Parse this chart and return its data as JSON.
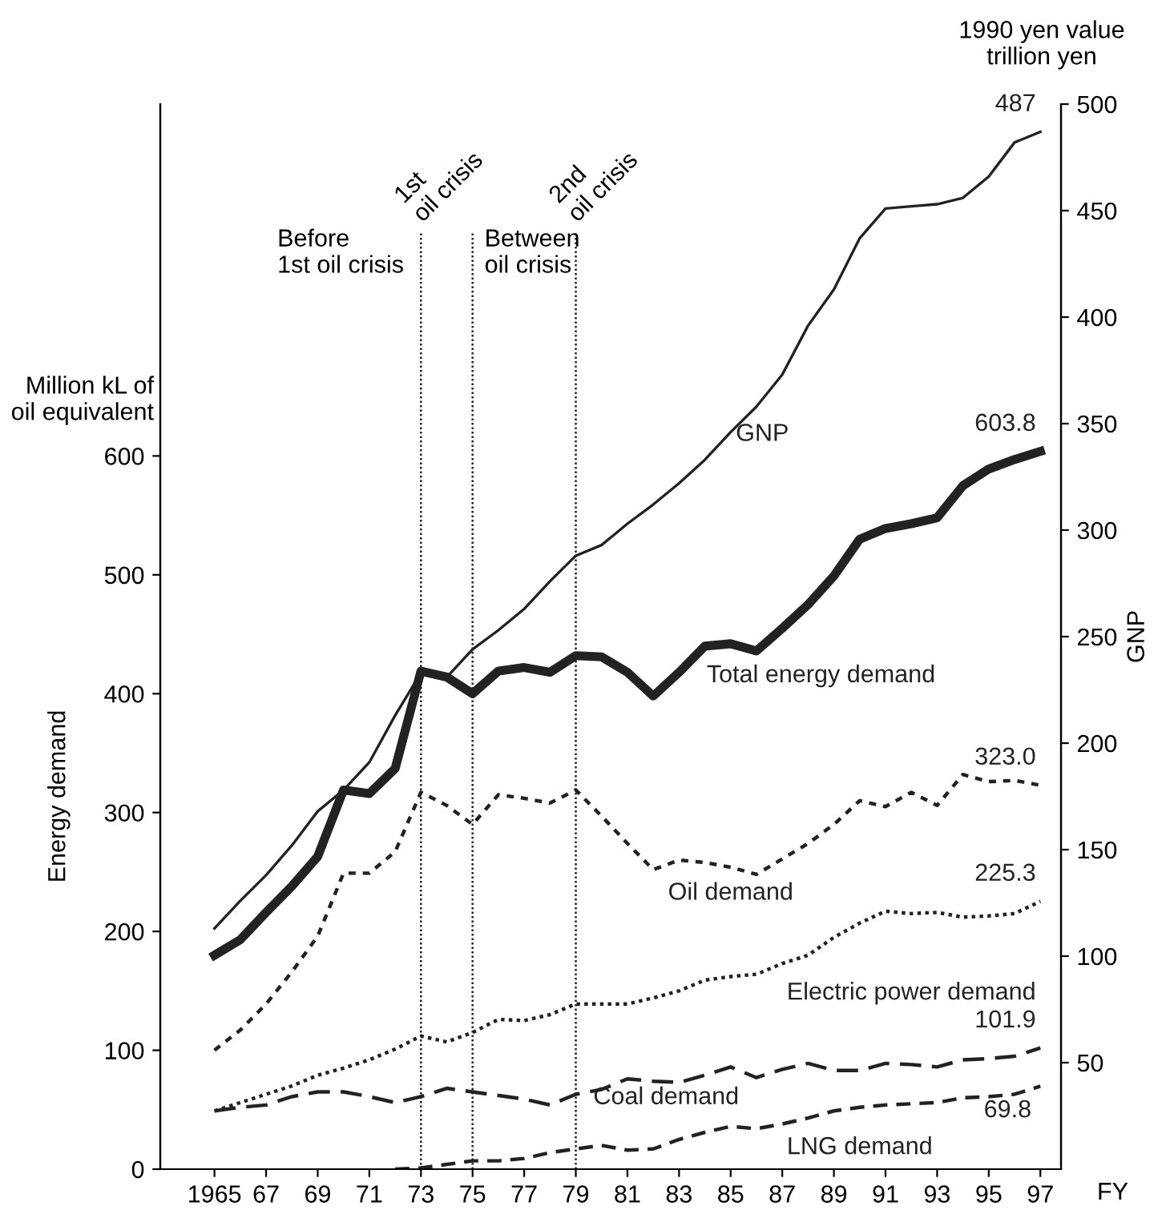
{
  "chart_data": {
    "type": "line",
    "xlabel": "FY",
    "ylabel": "Energy demand",
    "y2label": "GNP",
    "x": [
      1965,
      1966,
      1967,
      1968,
      1969,
      1970,
      1971,
      1972,
      1973,
      1974,
      1975,
      1976,
      1977,
      1978,
      1979,
      1980,
      1981,
      1982,
      1983,
      1984,
      1985,
      1986,
      1987,
      1988,
      1989,
      1990,
      1991,
      1992,
      1993,
      1994,
      1995,
      1996,
      1997
    ],
    "xlim": [
      1962.9,
      1997.8
    ],
    "xticks": [
      {
        "value": 1965,
        "label": "1965"
      },
      {
        "value": 1967,
        "label": "67"
      },
      {
        "value": 1969,
        "label": "69"
      },
      {
        "value": 1971,
        "label": "71"
      },
      {
        "value": 1973,
        "label": "73"
      },
      {
        "value": 1975,
        "label": "75"
      },
      {
        "value": 1977,
        "label": "77"
      },
      {
        "value": 1979,
        "label": "79"
      },
      {
        "value": 1981,
        "label": "81"
      },
      {
        "value": 1983,
        "label": "83"
      },
      {
        "value": 1985,
        "label": "85"
      },
      {
        "value": 1987,
        "label": "87"
      },
      {
        "value": 1989,
        "label": "89"
      },
      {
        "value": 1991,
        "label": "91"
      },
      {
        "value": 1993,
        "label": "93"
      },
      {
        "value": 1995,
        "label": "95"
      },
      {
        "value": 1997,
        "label": "97"
      }
    ],
    "ylim": [
      0,
      896
    ],
    "yticks": [
      0,
      100,
      200,
      300,
      400,
      500,
      600
    ],
    "y2lim": [
      0,
      500
    ],
    "y2ticks": [
      50,
      100,
      150,
      200,
      250,
      300,
      350,
      400,
      450,
      500
    ],
    "grid": false,
    "legend": false,
    "marker": "none",
    "series": [
      {
        "name": "GNP",
        "color": "#222222",
        "axis": "y2",
        "line_style": "solid",
        "values": [
          113,
          126,
          138,
          152,
          168,
          178,
          191,
          213,
          233,
          231,
          244,
          253,
          263,
          276,
          288,
          293,
          303,
          312,
          322,
          333,
          346,
          358,
          373,
          396,
          413,
          437,
          451,
          452,
          453,
          456,
          466,
          482,
          487
        ],
        "value_labels": [
          null,
          null,
          null,
          null,
          null,
          null,
          null,
          null,
          null,
          null,
          null,
          null,
          null,
          null,
          null,
          null,
          null,
          null,
          null,
          null,
          null,
          null,
          null,
          null,
          null,
          null,
          null,
          null,
          null,
          null,
          null,
          null,
          "487"
        ]
      },
      {
        "name": "Total energy demand",
        "color": "#222222",
        "line_style": "solid",
        "values": [
          180,
          193,
          216,
          238,
          263,
          319,
          316,
          337,
          419,
          414,
          400,
          419,
          422,
          418,
          432,
          431,
          418,
          398,
          418,
          440,
          442,
          436,
          455,
          475,
          499,
          530,
          539,
          543,
          548,
          575,
          589,
          597,
          603.8
        ],
        "value_labels": [
          null,
          null,
          null,
          null,
          null,
          null,
          null,
          null,
          null,
          null,
          null,
          null,
          null,
          null,
          null,
          null,
          null,
          null,
          null,
          null,
          null,
          null,
          null,
          null,
          null,
          null,
          null,
          null,
          null,
          null,
          null,
          null,
          "603.8"
        ]
      },
      {
        "name": "Oil demand",
        "color": "#222222",
        "line_style": "dashed",
        "values": [
          100,
          117,
          139,
          166,
          196,
          249,
          249,
          267,
          317,
          306,
          290,
          315,
          312,
          308,
          319,
          297,
          274,
          252,
          260,
          258,
          254,
          248,
          261,
          274,
          290,
          310,
          305,
          317,
          306,
          332,
          326,
          327,
          323.0
        ],
        "value_labels": [
          null,
          null,
          null,
          null,
          null,
          null,
          null,
          null,
          null,
          null,
          null,
          null,
          null,
          null,
          null,
          null,
          null,
          null,
          null,
          null,
          null,
          null,
          null,
          null,
          null,
          null,
          null,
          null,
          null,
          null,
          null,
          null,
          "323.0"
        ]
      },
      {
        "name": "Electric power demand",
        "color": "#222222",
        "line_style": "dotted",
        "values": [
          49,
          56,
          63,
          70,
          79,
          85,
          92,
          101,
          112,
          107,
          115,
          126,
          125,
          130,
          139,
          139,
          139,
          144,
          150,
          159,
          162,
          164,
          173,
          180,
          195,
          207,
          217,
          215,
          216,
          212,
          213,
          215,
          225.3
        ],
        "value_labels": [
          null,
          null,
          null,
          null,
          null,
          null,
          null,
          null,
          null,
          null,
          null,
          null,
          null,
          null,
          null,
          null,
          null,
          null,
          null,
          null,
          null,
          null,
          null,
          null,
          null,
          null,
          null,
          null,
          null,
          null,
          null,
          null,
          "225.3"
        ]
      },
      {
        "name": "Coal demand",
        "color": "#222222",
        "line_style": "dashed",
        "values": [
          49,
          52,
          54,
          61,
          65,
          65,
          61,
          56,
          61,
          68,
          65,
          62,
          59,
          54,
          63,
          67,
          76,
          74,
          73,
          79,
          86,
          77,
          84,
          89,
          83,
          83,
          89,
          88,
          86,
          92,
          93,
          95,
          101.9
        ],
        "value_labels": [
          null,
          null,
          null,
          null,
          null,
          null,
          null,
          null,
          null,
          null,
          null,
          null,
          null,
          null,
          null,
          null,
          null,
          null,
          null,
          null,
          null,
          null,
          null,
          null,
          null,
          null,
          null,
          null,
          null,
          null,
          null,
          null,
          "101.9"
        ]
      },
      {
        "name": "LNG demand",
        "color": "#222222",
        "line_style": "dashed",
        "values": [
          null,
          null,
          null,
          null,
          null,
          null,
          null,
          0,
          1,
          4,
          7,
          7,
          9,
          14,
          17,
          20,
          16,
          17,
          25,
          31,
          36,
          34,
          38,
          43,
          49,
          52,
          54,
          55,
          56,
          60,
          61,
          63,
          69.8
        ],
        "value_labels": [
          null,
          null,
          null,
          null,
          null,
          null,
          null,
          null,
          null,
          null,
          null,
          null,
          null,
          null,
          null,
          null,
          null,
          null,
          null,
          null,
          null,
          null,
          null,
          null,
          null,
          null,
          null,
          null,
          null,
          null,
          null,
          null,
          "69.8"
        ]
      }
    ],
    "ref_lines": [
      {
        "axis": "x",
        "value": 1973,
        "label": "1st\noil crisis",
        "color": "#222222",
        "line_style": "dotted"
      },
      {
        "axis": "x",
        "value": 1975,
        "label": null,
        "color": "#222222",
        "line_style": "dotted"
      },
      {
        "axis": "x",
        "value": 1979,
        "label": "2nd\noil crisis",
        "color": "#222222",
        "line_style": "dotted"
      }
    ],
    "annotations": [
      "Before\n1st oil crisis",
      "Between\noil crisis",
      "Million kL of\noil equivalent",
      "1990 yen value\ntrillion yen"
    ]
  }
}
